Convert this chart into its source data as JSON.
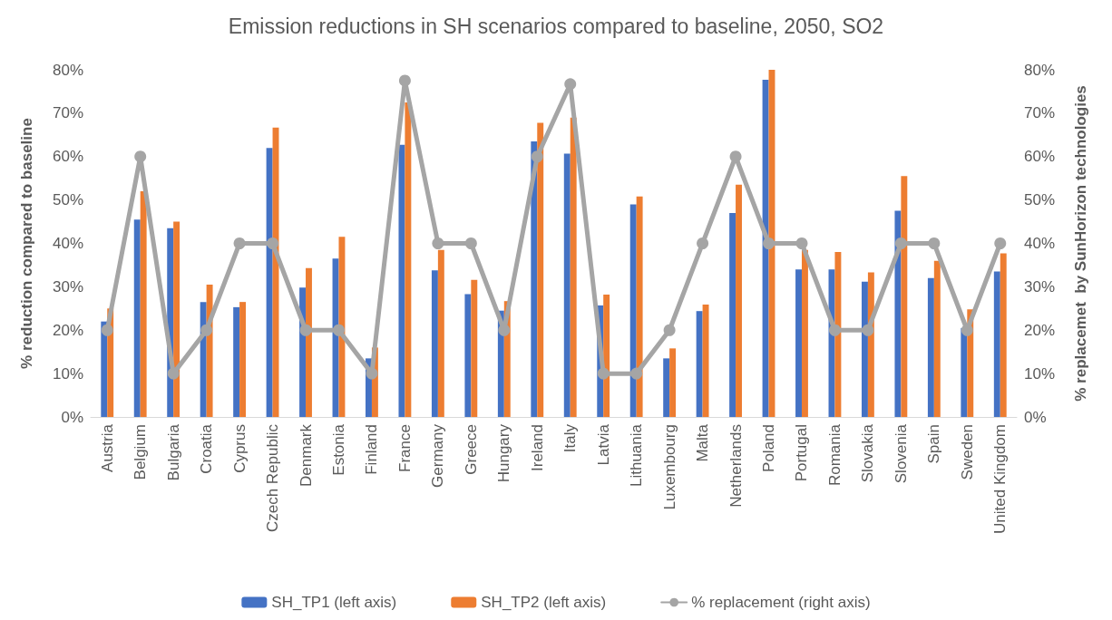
{
  "chart_data": {
    "type": "bar",
    "title": "Emission reductions in SH scenarios compared to baseline, 2050, SO2",
    "ylabel": "% reduction compared to baseline",
    "y2label": "% replacemet  by SunHorizon technologies",
    "categories": [
      "Austria",
      "Belgium",
      "Bulgaria",
      "Croatia",
      "Cyprus",
      "Czech Republic",
      "Denmark",
      "Estonia",
      "Finland",
      "France",
      "Germany",
      "Greece",
      "Hungary",
      "Ireland",
      "Italy",
      "Latvia",
      "Lithuania",
      "Luxembourg",
      "Malta",
      "Netherlands",
      "Poland",
      "Portugal",
      "Romania",
      "Slovakia",
      "Slovenia",
      "Spain",
      "Sweden",
      "United Kingdom"
    ],
    "series": [
      {
        "name": "SH_TP1 (left axis)",
        "color": "#4472c4",
        "values": [
          22,
          45.5,
          43.5,
          26.5,
          25.3,
          62,
          29.8,
          36.5,
          13.5,
          62.7,
          33.8,
          28.3,
          24.5,
          63.5,
          60.7,
          25.7,
          49,
          13.5,
          24.4,
          47,
          77.7,
          34,
          34,
          31.2,
          47.5,
          32,
          20.5,
          33.5
        ]
      },
      {
        "name": "SH_TP2 (left axis)",
        "color": "#ed7d31",
        "values": [
          25,
          52,
          45,
          30.5,
          26.5,
          66.7,
          34.3,
          41.5,
          16,
          72.5,
          38.5,
          31.6,
          26.7,
          67.8,
          69,
          28.2,
          50.8,
          15.8,
          25.9,
          53.5,
          80,
          38.5,
          38,
          33.3,
          55.5,
          36,
          24.8,
          37.7
        ]
      },
      {
        "name": "% replacement (right axis)",
        "type": "line",
        "axis": "y2",
        "marker": "circle",
        "color": "#a5a5a5",
        "values": [
          20,
          60,
          10,
          20,
          40,
          40,
          20,
          20,
          10,
          77.5,
          40,
          40,
          20,
          60,
          76.7,
          10,
          10,
          20,
          40,
          60,
          40,
          40,
          20,
          20,
          40,
          40,
          20,
          40
        ]
      }
    ],
    "ylim": [
      0,
      80
    ],
    "yticks": [
      {
        "value": 0,
        "label": "0%"
      },
      {
        "value": 10,
        "label": "10%"
      },
      {
        "value": 20,
        "label": "20%"
      },
      {
        "value": 30,
        "label": "30%"
      },
      {
        "value": 40,
        "label": "40%"
      },
      {
        "value": 50,
        "label": "50%"
      },
      {
        "value": 60,
        "label": "60%"
      },
      {
        "value": 70,
        "label": "70%"
      },
      {
        "value": 80,
        "label": "80%"
      }
    ],
    "y2lim": [
      0,
      80
    ],
    "y2ticks": [
      {
        "value": 0,
        "label": "0%"
      },
      {
        "value": 10,
        "label": "10%"
      },
      {
        "value": 20,
        "label": "20%"
      },
      {
        "value": 30,
        "label": "30%"
      },
      {
        "value": 40,
        "label": "40%"
      },
      {
        "value": 50,
        "label": "50%"
      },
      {
        "value": 60,
        "label": "60%"
      },
      {
        "value": 70,
        "label": "70%"
      },
      {
        "value": 80,
        "label": "80%"
      }
    ],
    "grid": false,
    "legend": "bottom"
  }
}
